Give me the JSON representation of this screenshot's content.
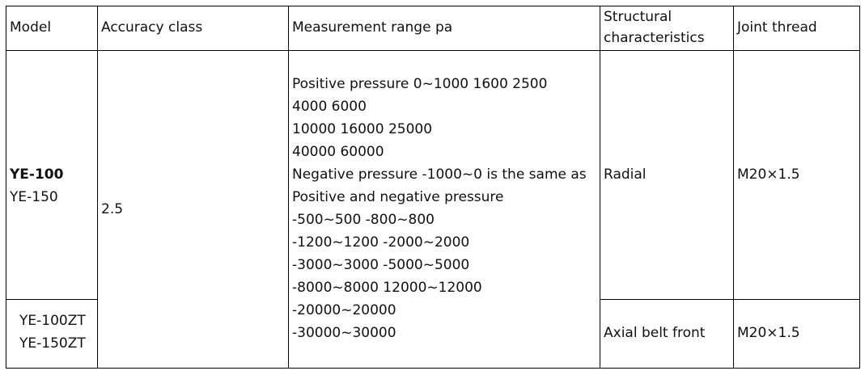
{
  "table": {
    "headers": {
      "model": "Model",
      "accuracy": "Accuracy class",
      "range": "Measurement range pa",
      "structural_line1": "Structural",
      "structural_line2": "characteristics",
      "thread": "Joint thread"
    },
    "rows": [
      {
        "models": [
          "YE-100",
          "YE-150"
        ],
        "structure": "Radial",
        "thread": "M20×1.5"
      },
      {
        "models": [
          "YE-100ZT",
          "YE-150ZT"
        ],
        "structure": "Axial belt front",
        "thread": "M20×1.5"
      }
    ],
    "accuracy_class": "2.5",
    "range_lines": [
      "Positive pressure 0~1000 1600 2500",
      "4000 6000",
      "10000 16000 25000",
      "40000  60000",
      "Negative pressure -1000~0 is the same as",
      "Positive and negative pressure",
      "-500~500 -800~800",
      "-1200~1200 -2000~2000",
      "-3000~3000 -5000~5000",
      "-8000~8000 12000~12000",
      "-20000~20000",
      "-30000~30000"
    ]
  }
}
